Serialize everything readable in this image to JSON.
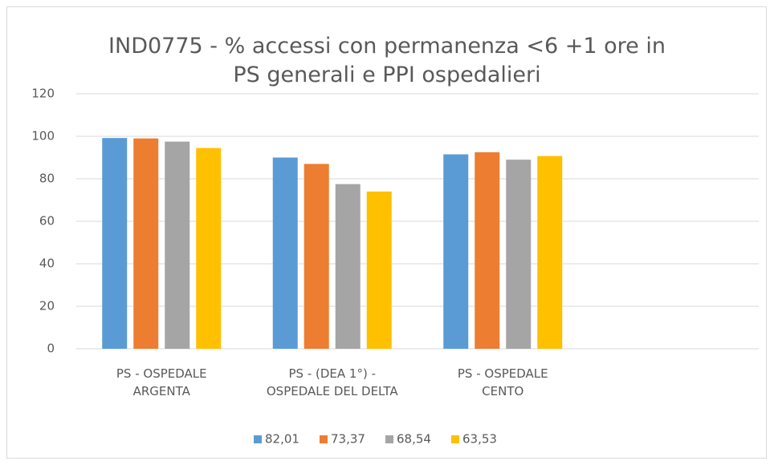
{
  "chart_data": {
    "type": "bar",
    "title": "IND0775 - % accessi con permanenza <6 +1 ore in\nPS generali e PPI ospedalieri",
    "categories": [
      "PS - OSPEDALE\nARGENTA",
      "PS - (DEA 1°) -\nOSPEDALE DEL DELTA",
      "PS - OSPEDALE\nCENTO",
      null
    ],
    "series": [
      {
        "name": "82,01",
        "color": "#5b9bd5",
        "values": [
          99.2,
          90,
          91.5,
          null
        ]
      },
      {
        "name": "73,37",
        "color": "#ed7d31",
        "values": [
          99,
          87,
          92.5,
          null
        ]
      },
      {
        "name": "68,54",
        "color": "#a5a5a5",
        "values": [
          97.5,
          77.5,
          89,
          null
        ]
      },
      {
        "name": "63,53",
        "color": "#ffc000",
        "values": [
          94.5,
          74,
          90.7,
          null
        ]
      }
    ],
    "ylim": [
      0,
      120
    ],
    "yticks": [
      0,
      20,
      40,
      60,
      80,
      100,
      120
    ],
    "grid": true,
    "legend": "bottom"
  }
}
